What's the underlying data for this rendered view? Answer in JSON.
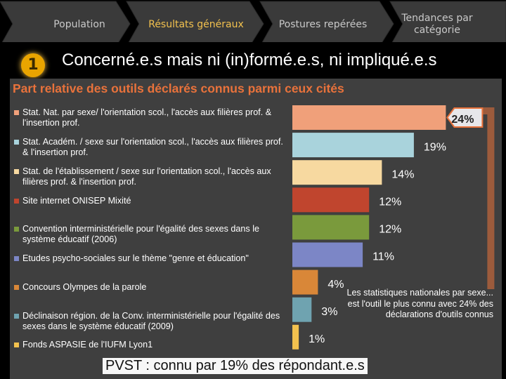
{
  "nav": {
    "steps": [
      "Population",
      "Résultats généraux",
      "Postures repérées",
      "Tendances par catégorie"
    ],
    "active_index": 1
  },
  "step_number": "1",
  "headline": "Concerné.e.s mais ni (in)formé.e.s, ni impliqué.e.s",
  "chart_data": {
    "type": "bar",
    "orientation": "horizontal",
    "title": "Part relative des outils déclarés connus parmi ceux cités",
    "categories": [
      "Stat. Nat. par sexe/ l'orientation scol., l'accès aux filières prof. & l'insertion prof.",
      "Stat. Académ. / sexe sur l'orientation scol., l'accès aux filières prof. & l'insertion prof.",
      "Stat. de l'établissement / sexe sur l'orientation scol., l'accès aux filières prof. & l'insertion prof.",
      "Site internet ONISEP Mixité",
      "Convention interministérielle pour l'égalité des sexes dans le système éducatif (2006)",
      "Etudes psycho-sociales sur le thème \"genre et éducation\"",
      "Concours Olympes de la parole",
      "Déclinaison région. de la Conv. interministérielle pour l'égalité des sexes dans le système éducatif (2009)",
      "Fonds ASPASIE de l'IUFM Lyon1"
    ],
    "values": [
      24,
      19,
      14,
      12,
      12,
      11,
      4,
      3,
      1
    ],
    "labels": [
      "24%",
      "19%",
      "14%",
      "12%",
      "12%",
      "11%",
      "4%",
      "3%",
      "1%"
    ],
    "colors": [
      "#f0a07a",
      "#a9d3dc",
      "#f7d9a0",
      "#c0452e",
      "#7a9a3c",
      "#7c86c6",
      "#d98738",
      "#6fa3b0",
      "#f2c14e"
    ],
    "highlight_index": 0,
    "annotation": "Les statistiques nationales par sexe... est l'outil le plus connu avec 24% des déclarations d'outils connus"
  },
  "footer": "PVST : connu par 19% des répondant.e.s"
}
